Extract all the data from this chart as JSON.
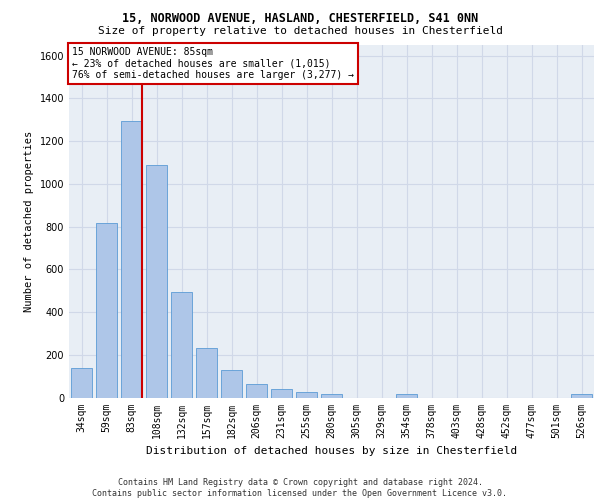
{
  "title_line1": "15, NORWOOD AVENUE, HASLAND, CHESTERFIELD, S41 0NN",
  "title_line2": "Size of property relative to detached houses in Chesterfield",
  "xlabel": "Distribution of detached houses by size in Chesterfield",
  "ylabel": "Number of detached properties",
  "footnote": "Contains HM Land Registry data © Crown copyright and database right 2024.\nContains public sector information licensed under the Open Government Licence v3.0.",
  "bar_labels": [
    "34sqm",
    "59sqm",
    "83sqm",
    "108sqm",
    "132sqm",
    "157sqm",
    "182sqm",
    "206sqm",
    "231sqm",
    "255sqm",
    "280sqm",
    "305sqm",
    "329sqm",
    "354sqm",
    "378sqm",
    "403sqm",
    "428sqm",
    "452sqm",
    "477sqm",
    "501sqm",
    "526sqm"
  ],
  "bar_values": [
    140,
    815,
    1295,
    1090,
    495,
    230,
    130,
    65,
    38,
    25,
    15,
    0,
    0,
    15,
    0,
    0,
    0,
    0,
    0,
    0,
    15
  ],
  "bar_color": "#aec6e8",
  "bar_edge_color": "#5b9bd5",
  "vline_x_index": 2,
  "vline_color": "#cc0000",
  "ylim": [
    0,
    1650
  ],
  "yticks": [
    0,
    200,
    400,
    600,
    800,
    1000,
    1200,
    1400,
    1600
  ],
  "annotation_box_text": "15 NORWOOD AVENUE: 85sqm\n← 23% of detached houses are smaller (1,015)\n76% of semi-detached houses are larger (3,277) →",
  "grid_color": "#d0d8e8",
  "plot_bg_color": "#e8eef5",
  "fig_bg_color": "#ffffff",
  "title1_fontsize": 8.5,
  "title2_fontsize": 8,
  "ylabel_fontsize": 7.5,
  "xlabel_fontsize": 8,
  "tick_fontsize": 7,
  "annot_fontsize": 7,
  "footnote_fontsize": 6
}
